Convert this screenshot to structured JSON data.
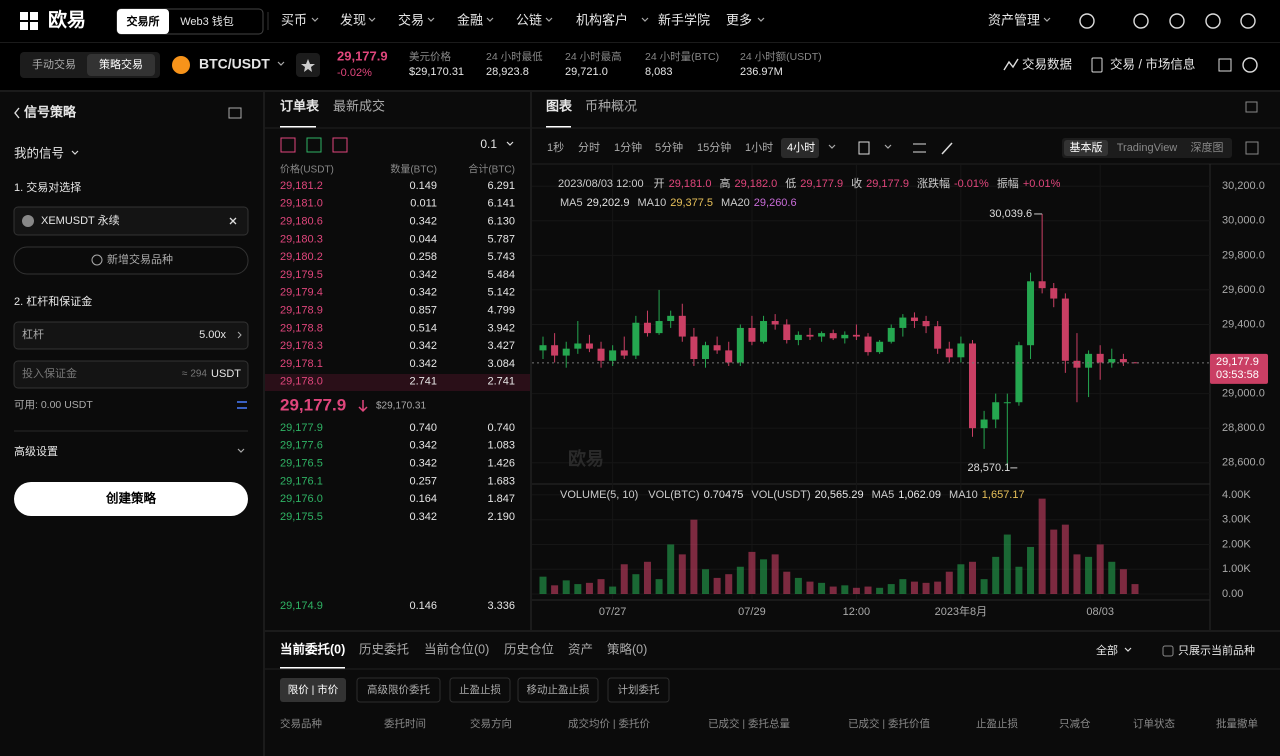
{
  "nav": {
    "logo": "欧易",
    "tabs": [
      "交易所",
      "Web3 钱包"
    ],
    "menu": [
      "买币",
      "发现",
      "交易",
      "金融",
      "公链",
      "机构客户",
      "新手学院",
      "更多"
    ],
    "assets": "资产管理"
  },
  "ticker": {
    "modes": [
      "手动交易",
      "策略交易"
    ],
    "pair": "BTC/USDT",
    "price": "29,177.9",
    "change": "-0.02%",
    "stats": [
      {
        "label": "美元价格",
        "value": "$29,170.31"
      },
      {
        "label": "24 小时最低",
        "value": "28,923.8"
      },
      {
        "label": "24 小时最高",
        "value": "29,721.0"
      },
      {
        "label": "24 小时量(BTC)",
        "value": "8,083"
      },
      {
        "label": "24 小时额(USDT)",
        "value": "236.97M"
      }
    ],
    "links": [
      "交易数据",
      "交易 / 市场信息"
    ]
  },
  "strategy": {
    "title": "信号策略",
    "my_signals": "我的信号",
    "section1": "1. 交易对选择",
    "pair": "XEMUSDT 永续",
    "add": "新增交易品种",
    "section2": "2. 杠杆和保证金",
    "leverage_label": "杠杆",
    "leverage": "5.00x",
    "margin_placeholder": "投入保证金",
    "margin_estimate": "≈ 294",
    "margin_unit": "USDT",
    "available": "可用: 0.00 USDT",
    "advanced": "高级设置",
    "create": "创建策略"
  },
  "order_book": {
    "tabs": [
      "订单表",
      "最新成交"
    ],
    "precision": "0.1",
    "headers": [
      "价格(USDT)",
      "数量(BTC)",
      "合计(BTC)"
    ],
    "asks": [
      [
        "29,181.2",
        "0.149",
        "6.291"
      ],
      [
        "29,181.0",
        "0.011",
        "6.141"
      ],
      [
        "29,180.6",
        "0.342",
        "6.130"
      ],
      [
        "29,180.3",
        "0.044",
        "5.787"
      ],
      [
        "29,180.2",
        "0.258",
        "5.743"
      ],
      [
        "29,179.5",
        "0.342",
        "5.484"
      ],
      [
        "29,179.4",
        "0.342",
        "5.142"
      ],
      [
        "29,178.9",
        "0.857",
        "4.799"
      ],
      [
        "29,178.8",
        "0.514",
        "3.942"
      ],
      [
        "29,178.3",
        "0.342",
        "3.427"
      ],
      [
        "29,178.1",
        "0.342",
        "3.084"
      ],
      [
        "29,178.0",
        "2.741",
        "2.741"
      ]
    ],
    "mid_price": "29,177.9",
    "mid_usd": "$29,170.31",
    "bids": [
      [
        "29,177.9",
        "0.740",
        "0.740"
      ],
      [
        "29,177.6",
        "0.342",
        "1.083"
      ],
      [
        "29,176.5",
        "0.342",
        "1.426"
      ],
      [
        "29,176.1",
        "0.257",
        "1.683"
      ],
      [
        "29,176.0",
        "0.164",
        "1.847"
      ],
      [
        "29,175.5",
        "0.342",
        "2.190"
      ]
    ],
    "last_row": [
      "29,174.9",
      "0.146",
      "3.336"
    ]
  },
  "chart_data": {
    "type": "candlestick",
    "tabs": [
      "图表",
      "币种概况"
    ],
    "intervals": [
      "1秒",
      "分时",
      "1分钟",
      "5分钟",
      "15分钟",
      "1小时",
      "4小时"
    ],
    "views": [
      "基本版",
      "TradingView",
      "深度图"
    ],
    "legend": {
      "date": "2023/08/03 12:00",
      "items": [
        {
          "label": "开",
          "value": "29,181.0"
        },
        {
          "label": "高",
          "value": "29,182.0"
        },
        {
          "label": "低",
          "value": "29,177.9"
        },
        {
          "label": "收",
          "value": "29,177.9"
        },
        {
          "label": "涨跌幅",
          "value": "-0.01%"
        },
        {
          "label": "振幅",
          "value": "+0.01%"
        }
      ]
    },
    "ma_legend": [
      {
        "label": "MA5",
        "value": "29,202.9",
        "color": "#e6e6e6"
      },
      {
        "label": "MA10",
        "value": "29,377.5",
        "color": "#e8c15a"
      },
      {
        "label": "MA20",
        "value": "29,260.6",
        "color": "#c86cd8"
      }
    ],
    "volume_legend": {
      "title": "VOLUME(5, 10)",
      "items": [
        {
          "label": "VOL(BTC)",
          "value": "0.70475",
          "color": "#e6e6e6"
        },
        {
          "label": "VOL(USDT)",
          "value": "20,565.29",
          "color": "#e6e6e6"
        },
        {
          "label": "MA5",
          "value": "1,062.09",
          "color": "#e6e6e6"
        },
        {
          "label": "MA10",
          "value": "1,657.17",
          "color": "#e8c15a"
        }
      ]
    },
    "watermark": "欧易",
    "high_label": "30,039.6",
    "low_label": "28,570.1",
    "last_price": "29,177.9",
    "countdown": "03:53:58",
    "up_color": "#25a750",
    "down_color": "#ca3f64",
    "categories": [
      null,
      null,
      null,
      null,
      null,
      null,
      "07/27",
      null,
      null,
      null,
      null,
      null,
      null,
      null,
      null,
      null,
      null,
      null,
      "07/29",
      null,
      null,
      null,
      null,
      null,
      null,
      null,
      null,
      "12:00",
      null,
      null,
      null,
      null,
      null,
      null,
      null,
      null,
      "2023年8月",
      null,
      null,
      null,
      null,
      null,
      null,
      null,
      null,
      null,
      null,
      null,
      "08/03",
      null,
      null,
      null
    ],
    "ohlc": [
      [
        29250,
        29330,
        29200,
        29280
      ],
      [
        29280,
        29350,
        29180,
        29220
      ],
      [
        29220,
        29300,
        29150,
        29260
      ],
      [
        29260,
        29420,
        29230,
        29290
      ],
      [
        29290,
        29340,
        29240,
        29260
      ],
      [
        29260,
        29300,
        29150,
        29190
      ],
      [
        29190,
        29280,
        29160,
        29250
      ],
      [
        29250,
        29330,
        29200,
        29220
      ],
      [
        29220,
        29450,
        29200,
        29410
      ],
      [
        29410,
        29480,
        29330,
        29350
      ],
      [
        29350,
        29600,
        29340,
        29420
      ],
      [
        29420,
        29480,
        29380,
        29450
      ],
      [
        29450,
        29520,
        29300,
        29330
      ],
      [
        29330,
        29380,
        29160,
        29200
      ],
      [
        29200,
        29300,
        29150,
        29280
      ],
      [
        29280,
        29330,
        29230,
        29250
      ],
      [
        29250,
        29300,
        29160,
        29180
      ],
      [
        29180,
        29400,
        29160,
        29380
      ],
      [
        29380,
        29450,
        29280,
        29300
      ],
      [
        29300,
        29450,
        29290,
        29420
      ],
      [
        29420,
        29460,
        29370,
        29400
      ],
      [
        29400,
        29430,
        29290,
        29310
      ],
      [
        29310,
        29360,
        29280,
        29340
      ],
      [
        29340,
        29380,
        29310,
        29330
      ],
      [
        29330,
        29360,
        29300,
        29350
      ],
      [
        29350,
        29370,
        29310,
        29320
      ],
      [
        29320,
        29360,
        29290,
        29340
      ],
      [
        29340,
        29400,
        29310,
        29330
      ],
      [
        29330,
        29350,
        29220,
        29240
      ],
      [
        29240,
        29310,
        29230,
        29300
      ],
      [
        29300,
        29400,
        29290,
        29380
      ],
      [
        29380,
        29460,
        29330,
        29440
      ],
      [
        29440,
        29470,
        29380,
        29420
      ],
      [
        29420,
        29450,
        29350,
        29390
      ],
      [
        29390,
        29420,
        29230,
        29260
      ],
      [
        29260,
        29300,
        29180,
        29210
      ],
      [
        29210,
        29330,
        29180,
        29290
      ],
      [
        29290,
        29310,
        28750,
        28800
      ],
      [
        28800,
        28900,
        28680,
        28850
      ],
      [
        28850,
        29000,
        28800,
        28950
      ],
      [
        28950,
        29000,
        28570.1,
        28950
      ],
      [
        28950,
        29300,
        28930,
        29280
      ],
      [
        29280,
        29700,
        29200,
        29650
      ],
      [
        29650,
        30039.6,
        29580,
        29610
      ],
      [
        29610,
        29640,
        29500,
        29550
      ],
      [
        29550,
        29580,
        29120,
        29190
      ],
      [
        29190,
        29350,
        28950,
        29150
      ],
      [
        29150,
        29250,
        28980,
        29230
      ],
      [
        29230,
        29280,
        29080,
        29180
      ],
      [
        29180,
        29260,
        29150,
        29200
      ],
      [
        29200,
        29230,
        29160,
        29181
      ],
      [
        29181,
        29182,
        29177.9,
        29177.9
      ]
    ],
    "volume": [
      700,
      350,
      550,
      400,
      450,
      600,
      300,
      1200,
      800,
      1300,
      600,
      2000,
      1600,
      3000,
      1000,
      650,
      800,
      1100,
      1700,
      1400,
      1600,
      900,
      650,
      500,
      450,
      300,
      350,
      250,
      300,
      250,
      400,
      600,
      500,
      450,
      500,
      900,
      1200,
      1300,
      600,
      1500,
      2400,
      1100,
      1900,
      3850,
      2600,
      2800,
      1600,
      1500,
      2000,
      1300,
      1000,
      400
    ],
    "ylim": [
      28500,
      30265
    ],
    "yticks": [
      {
        "value": 30200,
        "label": "30,200.0"
      },
      {
        "value": 30000,
        "label": "30,000.0"
      },
      {
        "value": 29800,
        "label": "29,800.0"
      },
      {
        "value": 29600,
        "label": "29,600.0"
      },
      {
        "value": 29400,
        "label": "29,400.0"
      },
      {
        "value": 29000,
        "label": "29,000.0"
      },
      {
        "value": 28800,
        "label": "28,800.0"
      },
      {
        "value": 28600,
        "label": "28,600.0"
      }
    ],
    "y2lim": [
      0,
      4320
    ],
    "y2ticks": [
      {
        "value": 4000,
        "label": "4.00K"
      },
      {
        "value": 3000,
        "label": "3.00K"
      },
      {
        "value": 2000,
        "label": "2.00K"
      },
      {
        "value": 1000,
        "label": "1.00K"
      },
      {
        "value": 0,
        "label": "0.00"
      }
    ],
    "grid": true
  },
  "orders": {
    "tabs": [
      "当前委托(0)",
      "历史委托",
      "当前仓位(0)",
      "历史仓位",
      "资产",
      "策略(0)"
    ],
    "filter": "全部",
    "checkbox": "只展示当前品种",
    "order_types": [
      "限价 | 市价",
      "高级限价委托",
      "止盈止损",
      "移动止盈止损",
      "计划委托"
    ],
    "columns": [
      "交易品种",
      "委托时间",
      "交易方向",
      "成交均价 | 委托价",
      "已成交 | 委托总量",
      "已成交 | 委托价值",
      "止盈止损",
      "只减仓",
      "订单状态",
      "批量撤单"
    ]
  }
}
